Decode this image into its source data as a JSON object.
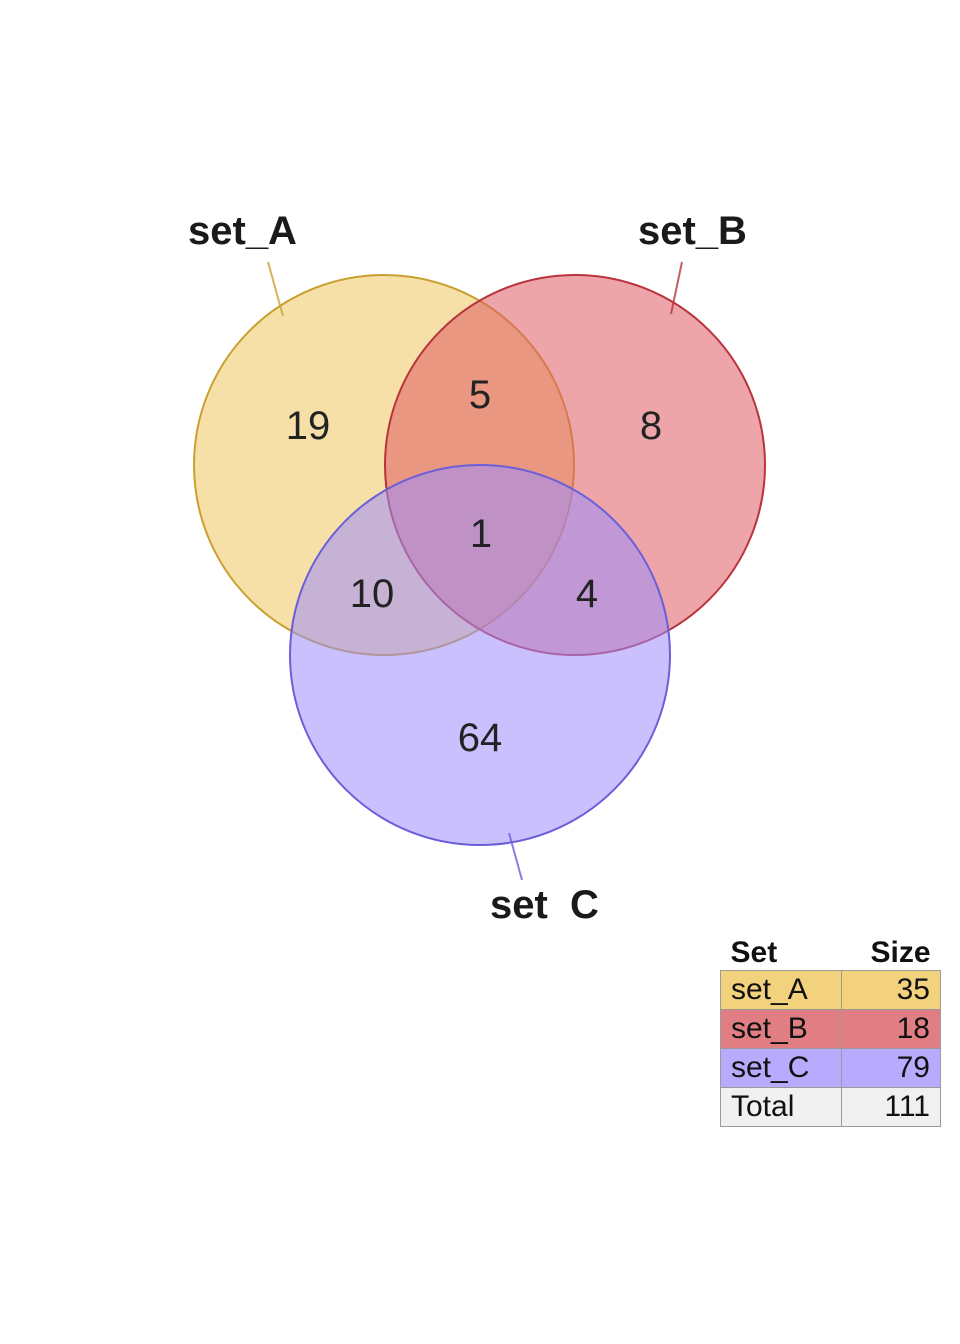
{
  "sets": [
    {
      "name": "set_A",
      "size": 35,
      "fill": "#f0c75e",
      "stroke": "#c9a030",
      "table_fill": "#f3d27e"
    },
    {
      "name": "set_B",
      "size": 18,
      "fill": "#de5b63",
      "stroke": "#b9333c",
      "table_fill": "#e07e84"
    },
    {
      "name": "set_C",
      "size": 79,
      "fill": "#9c8cfb",
      "stroke": "#6b5fd9",
      "table_fill": "#b8aafd"
    }
  ],
  "regions": {
    "a_only": "19",
    "b_only": "8",
    "c_only": "64",
    "ab_only": "5",
    "ac_only": "10",
    "bc_only": "4",
    "abc": "1"
  },
  "table": {
    "header_set": "Set",
    "header_size": "Size",
    "rows": [
      {
        "name": "set_A",
        "size": "35"
      },
      {
        "name": "set_B",
        "size": "18"
      },
      {
        "name": "set_C",
        "size": "79"
      }
    ],
    "total_label": "Total",
    "total_value": "111",
    "total_fill": "#f0f0f0"
  }
}
